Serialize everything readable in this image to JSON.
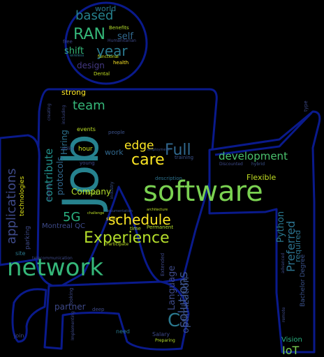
{
  "words": [
    {
      "text": "software",
      "color": "#7ad151"
    },
    {
      "text": "Job",
      "color": "#26828e"
    },
    {
      "text": "network",
      "color": "#35b779"
    },
    {
      "text": "Experience",
      "color": "#b5de2b"
    },
    {
      "text": "applications",
      "color": "#3e4a89"
    },
    {
      "text": "Full",
      "color": "#31688e"
    },
    {
      "text": "care",
      "color": "#fde725"
    },
    {
      "text": "schedule",
      "color": "#fde725"
    },
    {
      "text": "RAN",
      "color": "#35b779"
    },
    {
      "text": "year",
      "color": "#2a788e"
    },
    {
      "text": "based",
      "color": "#26828e"
    },
    {
      "text": "team",
      "color": "#35b779"
    },
    {
      "text": "edge",
      "color": "#fde725"
    },
    {
      "text": "development",
      "color": "#4ac16d"
    },
    {
      "text": "solutions",
      "color": "#3b528b"
    },
    {
      "text": "Preferred",
      "color": "#2c728e"
    },
    {
      "text": "contribute",
      "color": "#21918c"
    },
    {
      "text": "Company",
      "color": "#b5de2b"
    },
    {
      "text": "5G",
      "color": "#2ab07f"
    },
    {
      "text": "Language",
      "color": "#3e4a89"
    },
    {
      "text": "Python",
      "color": "#2a788e"
    },
    {
      "text": "optimization",
      "color": "#3b528b"
    },
    {
      "text": "partner",
      "color": "#3e4989"
    },
    {
      "text": "Flexible",
      "color": "#c2df23"
    },
    {
      "text": "IoT",
      "color": "#7ad151"
    },
    {
      "text": "C",
      "color": "#2a788e"
    },
    {
      "text": "protocols",
      "color": "#31688e"
    },
    {
      "text": "Hiring",
      "color": "#2c728e"
    },
    {
      "text": "shift",
      "color": "#35b779"
    },
    {
      "text": "self",
      "color": "#31688e"
    },
    {
      "text": "world",
      "color": "#2a788e"
    },
    {
      "text": "design",
      "color": "#443983"
    },
    {
      "text": "strong",
      "color": "#fde725"
    },
    {
      "text": "work",
      "color": "#31688e"
    },
    {
      "text": "technologies",
      "color": "#dde318"
    },
    {
      "text": "required",
      "color": "#2c728e"
    },
    {
      "text": "Bachelor Degree",
      "color": "#3b528b"
    },
    {
      "text": "Vision",
      "color": "#2ab07f"
    },
    {
      "text": "Montreal QC",
      "color": "#3e4a89"
    },
    {
      "text": "parking",
      "color": "#3e4a89"
    },
    {
      "text": "site",
      "color": "#2a788e"
    },
    {
      "text": "hour",
      "color": "#cae11f"
    },
    {
      "text": "events",
      "color": "#bddf26"
    },
    {
      "text": "food",
      "color": "#a5db36"
    },
    {
      "text": "join",
      "color": "#3e4a89"
    },
    {
      "text": "need",
      "color": "#2a788e"
    },
    {
      "text": "Salary",
      "color": "#3e4989"
    },
    {
      "text": "Extended",
      "color": "#3e4989"
    },
    {
      "text": "Permanent",
      "color": "#b5de2b"
    },
    {
      "text": "time",
      "color": "#b5de2b"
    },
    {
      "text": "description",
      "color": "#2c728e"
    },
    {
      "text": "training",
      "color": "#3b528b"
    },
    {
      "text": "Discounted",
      "color": "#3e4a89"
    },
    {
      "text": "hybrid",
      "color": "#3b528b"
    },
    {
      "text": "type",
      "color": "#3e4a89"
    },
    {
      "text": "Benefits",
      "color": "#b5de2b"
    },
    {
      "text": "free",
      "color": "#3e4a89"
    },
    {
      "text": "health",
      "color": "#fde725"
    },
    {
      "text": "Dental",
      "color": "#c2df23"
    },
    {
      "text": "functional",
      "color": "#cae11f"
    },
    {
      "text": "wireless",
      "color": "#2a788e"
    },
    {
      "text": "people",
      "color": "#3b528b"
    },
    {
      "text": "skills",
      "color": "#fde725"
    },
    {
      "text": "industry",
      "color": "#3b528b"
    },
    {
      "text": "young",
      "color": "#3e4a89"
    },
    {
      "text": "journey",
      "color": "#3e4a89"
    },
    {
      "text": "ability",
      "color": "#3e4a89"
    },
    {
      "text": "creating",
      "color": "#3e4a89"
    },
    {
      "text": "including",
      "color": "#3e4a89"
    },
    {
      "text": "advanced",
      "color": "#3e4a89"
    },
    {
      "text": "remote",
      "color": "#3e4a89"
    },
    {
      "text": "Humanitarian",
      "color": "#3e4a89"
    },
    {
      "text": "Implementing",
      "color": "#3e4a89"
    },
    {
      "text": "looking",
      "color": "#3e4a89"
    },
    {
      "text": "deep",
      "color": "#3e4a89"
    },
    {
      "text": "Participate",
      "color": "#bddf26"
    },
    {
      "text": "architecture",
      "color": "#bddf26"
    },
    {
      "text": "Preparing",
      "color": "#b5de2b"
    },
    {
      "text": "employment",
      "color": "#3b528b"
    },
    {
      "text": "challenge",
      "color": "#bddf26"
    },
    {
      "text": "documentation",
      "color": "#3b528b"
    },
    {
      "text": "telecommunication",
      "color": "#3e4a89"
    }
  ]
}
